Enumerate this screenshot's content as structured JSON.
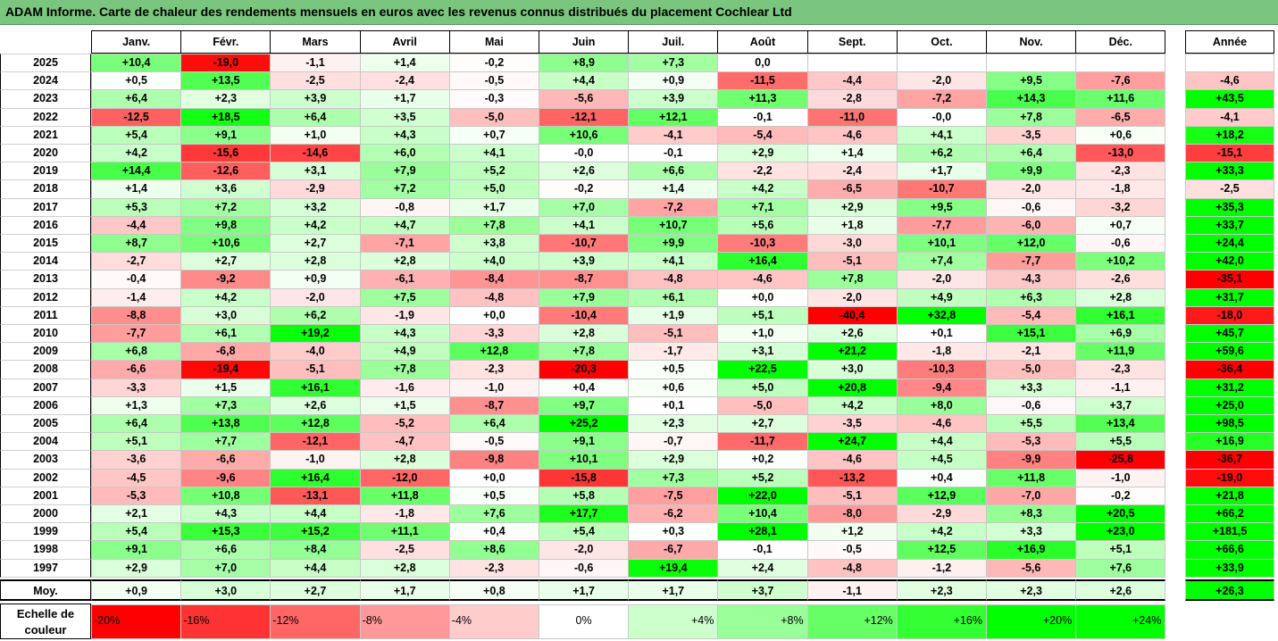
{
  "title": "ADAM Informe. Carte de chaleur des rendements mensuels en euros avec les revenus connus distribués du placement Cochlear Ltd",
  "chart_data": {
    "type": "heatmap",
    "columns": [
      "Janv.",
      "Févr.",
      "Mars",
      "Avril",
      "Mai",
      "Juin",
      "Juil.",
      "Août",
      "Sept.",
      "Oct.",
      "Nov.",
      "Déc."
    ],
    "annual_header": "Année",
    "rows": [
      {
        "year": "2025",
        "values": [
          10.4,
          -19.0,
          -1.1,
          1.4,
          -0.2,
          8.9,
          7.3,
          0.0,
          null,
          null,
          null,
          null
        ],
        "annual": null
      },
      {
        "year": "2024",
        "values": [
          0.5,
          13.5,
          -2.5,
          -2.4,
          -0.5,
          4.4,
          0.9,
          -11.5,
          -4.4,
          -2.0,
          9.5,
          -7.6
        ],
        "annual": -4.6
      },
      {
        "year": "2023",
        "values": [
          6.4,
          2.3,
          3.9,
          1.7,
          -0.3,
          -5.6,
          3.9,
          11.3,
          -2.8,
          -7.2,
          14.3,
          11.6
        ],
        "annual": 43.5
      },
      {
        "year": "2022",
        "values": [
          -12.5,
          18.5,
          6.4,
          3.5,
          -5.0,
          -12.1,
          12.1,
          -0.1,
          -11.0,
          -0.0,
          7.8,
          -6.5
        ],
        "annual": -4.1
      },
      {
        "year": "2021",
        "values": [
          5.4,
          9.1,
          1.0,
          4.3,
          0.7,
          10.6,
          -4.1,
          -5.4,
          -4.6,
          4.1,
          -3.5,
          0.6
        ],
        "annual": 18.2
      },
      {
        "year": "2020",
        "values": [
          4.2,
          -15.6,
          -14.6,
          6.0,
          4.1,
          -0.0,
          -0.1,
          2.9,
          1.4,
          6.2,
          6.4,
          -13.0
        ],
        "annual": -15.1
      },
      {
        "year": "2019",
        "values": [
          14.4,
          -12.6,
          3.1,
          7.9,
          5.2,
          2.6,
          6.6,
          -2.2,
          -2.4,
          1.7,
          9.9,
          -2.3
        ],
        "annual": 33.3
      },
      {
        "year": "2018",
        "values": [
          1.4,
          3.6,
          -2.9,
          7.2,
          5.0,
          -0.2,
          1.4,
          4.2,
          -6.5,
          -10.7,
          -2.0,
          -1.8
        ],
        "annual": -2.5
      },
      {
        "year": "2017",
        "values": [
          5.3,
          7.2,
          3.2,
          -0.8,
          1.7,
          7.0,
          -7.2,
          7.1,
          2.9,
          9.5,
          -0.6,
          -3.2
        ],
        "annual": 35.3
      },
      {
        "year": "2016",
        "values": [
          -4.4,
          9.8,
          4.2,
          4.7,
          7.8,
          4.1,
          10.7,
          5.6,
          1.8,
          -7.7,
          -6.0,
          0.7
        ],
        "annual": 33.7
      },
      {
        "year": "2015",
        "values": [
          8.7,
          10.6,
          2.7,
          -7.1,
          3.8,
          -10.7,
          9.9,
          -10.3,
          -3.0,
          10.1,
          12.0,
          -0.6
        ],
        "annual": 24.4
      },
      {
        "year": "2014",
        "values": [
          -2.7,
          2.7,
          2.8,
          2.8,
          4.0,
          3.9,
          4.1,
          16.4,
          -5.1,
          7.4,
          -7.7,
          10.2
        ],
        "annual": 42.0
      },
      {
        "year": "2013",
        "values": [
          -0.4,
          -9.2,
          0.9,
          -6.1,
          -8.4,
          -8.7,
          -4.8,
          -4.6,
          7.8,
          -2.0,
          -4.3,
          -2.6
        ],
        "annual": -35.1
      },
      {
        "year": "2012",
        "values": [
          -1.4,
          4.2,
          -2.0,
          7.5,
          -4.8,
          7.9,
          6.1,
          0.0,
          -2.0,
          4.9,
          6.3,
          2.8
        ],
        "annual": 31.7
      },
      {
        "year": "2011",
        "values": [
          -8.8,
          3.0,
          6.2,
          -1.9,
          0.0,
          -10.4,
          1.9,
          5.1,
          -40.4,
          32.8,
          -5.4,
          16.1
        ],
        "annual": -18.0
      },
      {
        "year": "2010",
        "values": [
          -7.7,
          6.1,
          19.2,
          4.3,
          -3.3,
          2.8,
          -5.1,
          1.0,
          2.6,
          0.1,
          15.1,
          6.9
        ],
        "annual": 45.7
      },
      {
        "year": "2009",
        "values": [
          6.8,
          -6.8,
          -4.0,
          4.9,
          12.8,
          7.8,
          -1.7,
          3.1,
          21.2,
          -1.8,
          -2.1,
          11.9
        ],
        "annual": 59.6
      },
      {
        "year": "2008",
        "values": [
          -6.6,
          -19.4,
          -5.1,
          7.8,
          -2.3,
          -20.3,
          0.5,
          22.5,
          3.0,
          -10.3,
          -5.0,
          -2.3
        ],
        "annual": -36.4
      },
      {
        "year": "2007",
        "values": [
          -3.3,
          1.5,
          16.1,
          -1.6,
          -1.0,
          0.4,
          0.6,
          5.0,
          20.8,
          -9.4,
          3.3,
          -1.1
        ],
        "annual": 31.2
      },
      {
        "year": "2006",
        "values": [
          1.3,
          7.3,
          2.6,
          1.5,
          -8.7,
          9.7,
          0.1,
          -5.0,
          4.2,
          8.0,
          -0.6,
          3.7
        ],
        "annual": 25.0
      },
      {
        "year": "2005",
        "values": [
          6.4,
          13.8,
          12.8,
          -5.2,
          6.4,
          25.2,
          2.3,
          2.7,
          -3.5,
          -4.6,
          5.5,
          13.4
        ],
        "annual": 98.5
      },
      {
        "year": "2004",
        "values": [
          5.1,
          7.7,
          -12.1,
          -4.7,
          -0.5,
          9.1,
          -0.7,
          -11.7,
          24.7,
          4.4,
          -5.3,
          5.5
        ],
        "annual": 16.9
      },
      {
        "year": "2003",
        "values": [
          -3.6,
          -6.6,
          -1.0,
          2.8,
          -9.8,
          10.1,
          2.9,
          0.2,
          -4.6,
          4.5,
          -9.9,
          -25.8
        ],
        "annual": -36.7
      },
      {
        "year": "2002",
        "values": [
          -4.5,
          -9.6,
          16.4,
          -12.0,
          0.0,
          -15.8,
          7.3,
          5.2,
          -13.2,
          0.4,
          11.8,
          -1.0
        ],
        "annual": -19.0
      },
      {
        "year": "2001",
        "values": [
          -5.3,
          10.8,
          -13.1,
          11.8,
          0.5,
          5.8,
          -7.5,
          22.0,
          -5.1,
          12.9,
          -7.0,
          -0.2
        ],
        "annual": 21.8
      },
      {
        "year": "2000",
        "values": [
          2.1,
          4.3,
          4.4,
          -1.8,
          7.6,
          17.7,
          -6.2,
          10.4,
          -8.0,
          -2.9,
          8.3,
          20.5
        ],
        "annual": 66.2
      },
      {
        "year": "1999",
        "values": [
          5.4,
          15.3,
          15.2,
          11.1,
          0.4,
          5.4,
          0.3,
          28.1,
          1.2,
          4.2,
          3.3,
          23.0
        ],
        "annual": 181.5
      },
      {
        "year": "1998",
        "values": [
          9.1,
          6.6,
          8.4,
          -2.5,
          8.6,
          -2.0,
          -6.7,
          -0.1,
          -0.5,
          12.5,
          16.9,
          5.1
        ],
        "annual": 66.6
      },
      {
        "year": "1997",
        "values": [
          2.9,
          7.0,
          4.4,
          2.8,
          -2.3,
          -0.6,
          19.4,
          2.4,
          -4.8,
          -1.2,
          -5.6,
          7.6
        ],
        "annual": 33.9
      }
    ],
    "average_label": "Moy.",
    "average": {
      "values": [
        0.9,
        3.0,
        2.7,
        1.7,
        0.8,
        1.7,
        1.7,
        3.7,
        -1.1,
        2.3,
        2.3,
        2.6
      ],
      "annual": 26.3
    },
    "display_overrides": {
      "2025-7": "0,0",
      "2022-9": "-0,0",
      "2020-5": "-0,0",
      "2012-7": "+0,0",
      "2011-4": "+0,0",
      "2002-4": "+0,0"
    },
    "scale_label": "Echelle de couleur",
    "scale": [
      {
        "label": "-20%",
        "value": -20,
        "color": "#ff0000"
      },
      {
        "label": "-16%",
        "value": -16,
        "color": "#ff3333"
      },
      {
        "label": "-12%",
        "value": -12,
        "color": "#ff6666"
      },
      {
        "label": "-8%",
        "value": -8,
        "color": "#ff9999"
      },
      {
        "label": "-4%",
        "value": -4,
        "color": "#ffcccc"
      },
      {
        "label": "0%",
        "value": 0,
        "color": "#ffffff"
      },
      {
        "label": "+4%",
        "value": 4,
        "color": "#ccffcc"
      },
      {
        "label": "+8%",
        "value": 8,
        "color": "#99ff99"
      },
      {
        "label": "+12%",
        "value": 12,
        "color": "#66ff66"
      },
      {
        "label": "+16%",
        "value": 16,
        "color": "#33ff33"
      },
      {
        "label": "+20%",
        "value": 20,
        "color": "#00ff00"
      },
      {
        "label": "+24%",
        "value": 24,
        "color": "#00ff00"
      }
    ]
  }
}
